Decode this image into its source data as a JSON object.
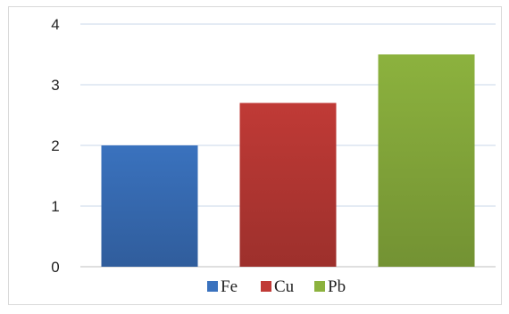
{
  "chart_data": {
    "type": "bar",
    "categories": [
      "Fe",
      "Cu",
      "Pb"
    ],
    "values": [
      2.0,
      2.7,
      3.5
    ],
    "colors": [
      "#3a72be",
      "#c03a36",
      "#8cb23e"
    ],
    "ylim": [
      0,
      4
    ],
    "yticks": [
      "0",
      "1",
      "2",
      "3",
      "4"
    ],
    "grid": true,
    "legend": {
      "position": "bottom",
      "entries": [
        "Fe",
        "Cu",
        "Pb"
      ]
    }
  }
}
